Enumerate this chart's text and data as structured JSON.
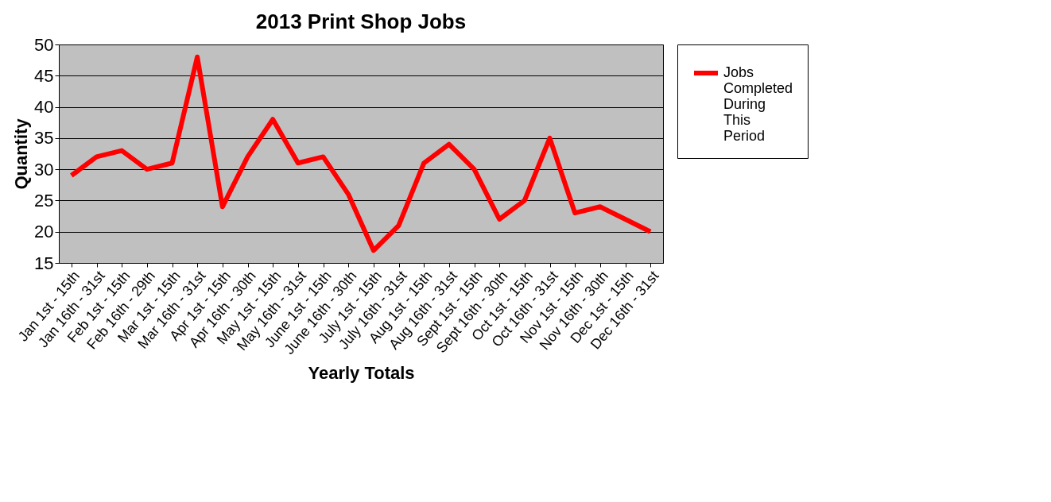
{
  "chart_data": {
    "type": "line",
    "title": "2013 Print Shop Jobs",
    "xlabel": "Yearly Totals",
    "ylabel": "Quantity",
    "categories": [
      "Jan 1st - 15th",
      "Jan 16th - 31st",
      "Feb 1st - 15th",
      "Feb 16th - 29th",
      "Mar 1st - 15th",
      "Mar 16th - 31st",
      "Apr 1st - 15th",
      "Apr 16th - 30th",
      "May 1st - 15th",
      "May 16th - 31st",
      "June 1st - 15th",
      "June 16th - 30th",
      "July 1st - 15th",
      "July 16th - 31st",
      "Aug 1st - 15th",
      "Aug 16th - 31st",
      "Sept 1st - 15th",
      "Sept 16th - 30th",
      "Oct 1st - 15th",
      "Oct 16th - 31st",
      "Nov 1st - 15th",
      "Nov 16th - 30th",
      "Dec 1st - 15th",
      "Dec 16th - 31st"
    ],
    "series": [
      {
        "name": "Jobs Completed During This Period",
        "color": "#ff0000",
        "values": [
          29,
          32,
          33,
          30,
          31,
          48,
          24,
          32,
          38,
          31,
          32,
          26,
          17,
          21,
          31,
          34,
          30,
          22,
          25,
          35,
          23,
          24,
          22,
          20
        ]
      }
    ],
    "ylim": [
      15,
      50
    ],
    "yticks": [
      15,
      20,
      25,
      30,
      35,
      40,
      45,
      50
    ],
    "grid": "y",
    "legend": "right",
    "marker": "none",
    "line_style": "solid"
  }
}
